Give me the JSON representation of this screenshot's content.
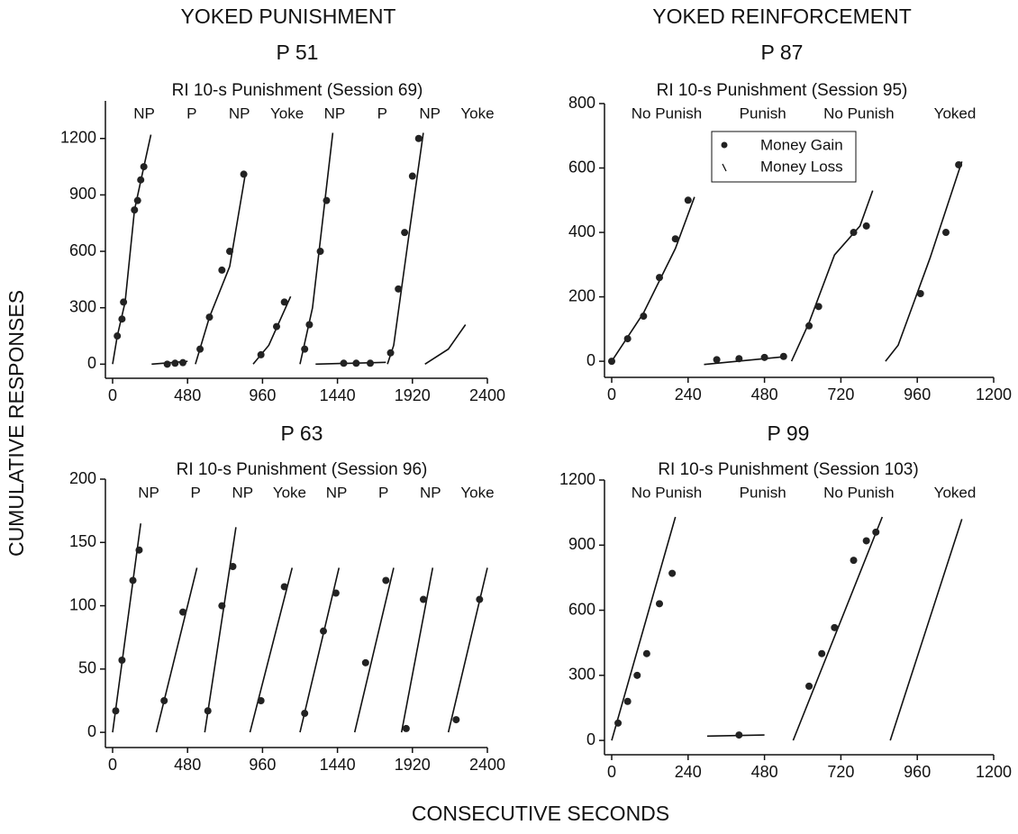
{
  "headings": {
    "left": "YOKED PUNISHMENT",
    "right": "YOKED REINFORCEMENT",
    "y_label": "CUMULATIVE RESPONSES",
    "x_label": "CONSECUTIVE SECONDS"
  },
  "chart_data": [
    {
      "type": "line",
      "title": "P 51",
      "subtitle": "RI 10-s Punishment (Session 69)",
      "phases": [
        "NP",
        "P",
        "NP",
        "Yoke",
        "NP",
        "P",
        "NP",
        "Yoke"
      ],
      "xlim": [
        0,
        2400
      ],
      "xticks": [
        0,
        480,
        960,
        1440,
        1920,
        2400
      ],
      "ylim": [
        -75,
        1400
      ],
      "yticks": [
        0,
        300,
        600,
        900,
        1200
      ],
      "segments": [
        {
          "x": [
            0,
            30,
            80,
            140,
            200,
            245
          ],
          "values": [
            0,
            150,
            330,
            820,
            1050,
            1220
          ]
        },
        {
          "x": [
            250,
            480
          ],
          "values": [
            0,
            15
          ]
        },
        {
          "x": [
            530,
            620,
            750,
            850
          ],
          "values": [
            0,
            250,
            520,
            1010
          ]
        },
        {
          "x": [
            900,
            1000,
            1140
          ],
          "values": [
            0,
            100,
            360
          ]
        },
        {
          "x": [
            1200,
            1280,
            1410
          ],
          "values": [
            0,
            300,
            1230
          ]
        },
        {
          "x": [
            1300,
            1750
          ],
          "values": [
            0,
            10
          ]
        },
        {
          "x": [
            1760,
            1800,
            1900,
            1990
          ],
          "values": [
            0,
            100,
            700,
            1230
          ]
        },
        {
          "x": [
            2000,
            2150,
            2260
          ],
          "values": [
            0,
            80,
            210
          ]
        }
      ],
      "gain_points": {
        "x": [
          30,
          60,
          70,
          140,
          160,
          180,
          200,
          350,
          400,
          450,
          560,
          620,
          700,
          750,
          840,
          950,
          1050,
          1100,
          1230,
          1260,
          1330,
          1370,
          1480,
          1560,
          1650,
          1780,
          1830,
          1870,
          1920,
          1960
        ],
        "values": [
          150,
          240,
          330,
          820,
          870,
          980,
          1050,
          0,
          5,
          8,
          80,
          250,
          500,
          600,
          1010,
          50,
          200,
          330,
          80,
          210,
          600,
          870,
          5,
          5,
          5,
          60,
          400,
          700,
          1000,
          1200
        ]
      }
    },
    {
      "type": "line",
      "title": "P 87",
      "subtitle": "RI 10-s Punishment (Session 95)",
      "phases": [
        "No Punish",
        "Punish",
        "No Punish",
        "Yoked"
      ],
      "xlim": [
        0,
        1200
      ],
      "xticks": [
        0,
        240,
        480,
        720,
        960,
        1200
      ],
      "ylim": [
        -50,
        800
      ],
      "yticks": [
        0,
        200,
        400,
        600,
        800
      ],
      "legend": [
        "Money Gain",
        "Money Loss"
      ],
      "segments": [
        {
          "x": [
            0,
            100,
            200,
            260
          ],
          "values": [
            0,
            150,
            350,
            510
          ]
        },
        {
          "x": [
            290,
            550
          ],
          "values": [
            -10,
            15
          ]
        },
        {
          "x": [
            565,
            620,
            700,
            780,
            820
          ],
          "values": [
            0,
            120,
            330,
            420,
            530
          ]
        },
        {
          "x": [
            860,
            900,
            1000,
            1100
          ],
          "values": [
            0,
            50,
            320,
            620
          ]
        }
      ],
      "gain_points": {
        "x": [
          0,
          50,
          100,
          150,
          200,
          240,
          330,
          400,
          480,
          540,
          620,
          650,
          760,
          800,
          970,
          1050,
          1090
        ],
        "values": [
          0,
          70,
          140,
          260,
          380,
          500,
          5,
          8,
          12,
          15,
          110,
          170,
          400,
          420,
          210,
          400,
          610
        ]
      }
    },
    {
      "type": "line",
      "title": "P 63",
      "subtitle": "RI 10-s Punishment (Session 96)",
      "phases": [
        "NP",
        "P",
        "NP",
        "Yoke",
        "NP",
        "P",
        "NP",
        "Yoke"
      ],
      "xlim": [
        0,
        2400
      ],
      "xticks": [
        0,
        480,
        960,
        1440,
        1920,
        2400
      ],
      "ylim": [
        -12,
        200
      ],
      "yticks": [
        0,
        50,
        100,
        150,
        200
      ],
      "segments": [
        {
          "x": [
            0,
            180
          ],
          "values": [
            0,
            165
          ]
        },
        {
          "x": [
            280,
            540
          ],
          "values": [
            0,
            130
          ]
        },
        {
          "x": [
            590,
            790
          ],
          "values": [
            0,
            162
          ]
        },
        {
          "x": [
            880,
            1150
          ],
          "values": [
            0,
            130
          ]
        },
        {
          "x": [
            1200,
            1450
          ],
          "values": [
            0,
            130
          ]
        },
        {
          "x": [
            1550,
            1800
          ],
          "values": [
            0,
            130
          ]
        },
        {
          "x": [
            1850,
            2050
          ],
          "values": [
            0,
            130
          ]
        },
        {
          "x": [
            2150,
            2400
          ],
          "values": [
            0,
            130
          ]
        }
      ],
      "gain_points": {
        "x": [
          20,
          60,
          130,
          170,
          330,
          450,
          610,
          700,
          770,
          950,
          1100,
          1230,
          1350,
          1430,
          1620,
          1750,
          1880,
          1990,
          2200,
          2350
        ],
        "values": [
          17,
          57,
          120,
          144,
          25,
          95,
          17,
          100,
          131,
          25,
          115,
          15,
          80,
          110,
          55,
          120,
          3,
          105,
          10,
          105
        ]
      }
    },
    {
      "type": "line",
      "title": "P 99",
      "subtitle": "RI 10-s Punishment (Session 103)",
      "phases": [
        "No Punish",
        "Punish",
        "No Punish",
        "Yoked"
      ],
      "xlim": [
        0,
        1200
      ],
      "xticks": [
        0,
        240,
        480,
        720,
        960,
        1200
      ],
      "ylim": [
        -66,
        1200
      ],
      "yticks": [
        0,
        300,
        600,
        900,
        1200
      ],
      "segments": [
        {
          "x": [
            0,
            200
          ],
          "values": [
            0,
            1030
          ]
        },
        {
          "x": [
            300,
            480
          ],
          "values": [
            20,
            25
          ]
        },
        {
          "x": [
            570,
            850
          ],
          "values": [
            0,
            1030
          ]
        },
        {
          "x": [
            875,
            1100
          ],
          "values": [
            0,
            1020
          ]
        }
      ],
      "gain_points": {
        "x": [
          20,
          50,
          80,
          110,
          150,
          190,
          400,
          620,
          660,
          700,
          760,
          800,
          830
        ],
        "values": [
          80,
          180,
          300,
          400,
          630,
          770,
          25,
          250,
          400,
          520,
          830,
          920,
          960
        ]
      }
    }
  ]
}
